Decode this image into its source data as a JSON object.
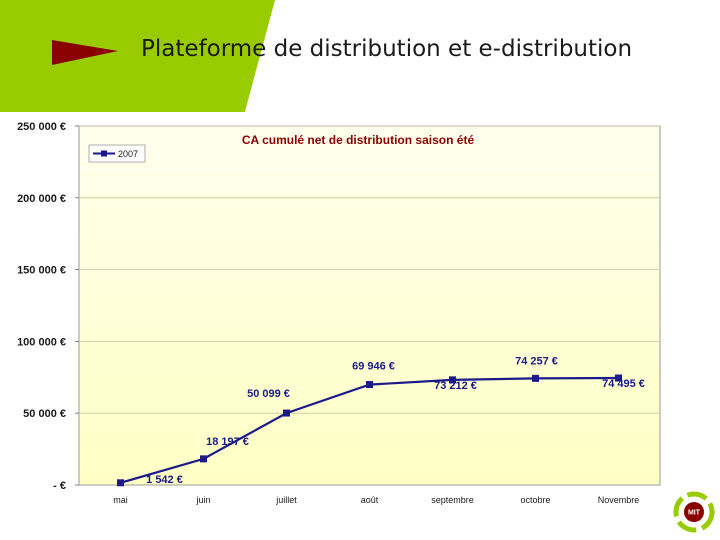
{
  "slide": {
    "title": "Plateforme de distribution et e-distribution",
    "colors": {
      "accent_green": "#99cc00",
      "arrow_red": "#8b0000"
    },
    "logo_text": "MIT"
  },
  "chart_data": {
    "type": "line",
    "title": "CA cumulé net de distribution saison été",
    "categories": [
      "mai",
      "juin",
      "juillet",
      "août",
      "septembre",
      "octobre",
      "Novembre"
    ],
    "series": [
      {
        "name": "2007",
        "values": [
          1542,
          18197,
          50099,
          69946,
          73212,
          74257,
          74495
        ],
        "labels": [
          "1 542 €",
          "18 197 €",
          "50 099 €",
          "69 946 €",
          "73 212 €",
          "74 257 €",
          "74 495 €"
        ],
        "color": "#1a1a8a"
      }
    ],
    "ylim": [
      0,
      250000
    ],
    "yticks": [
      0,
      50000,
      100000,
      150000,
      200000,
      250000
    ],
    "ytick_labels": [
      "- €",
      "50 000 €",
      "100 000 €",
      "150 000 €",
      "200 000 €",
      "250 000 €"
    ],
    "xlabel": "",
    "ylabel": "",
    "grid": true,
    "legend": "top-left",
    "plot_background": "#ffffcc"
  }
}
